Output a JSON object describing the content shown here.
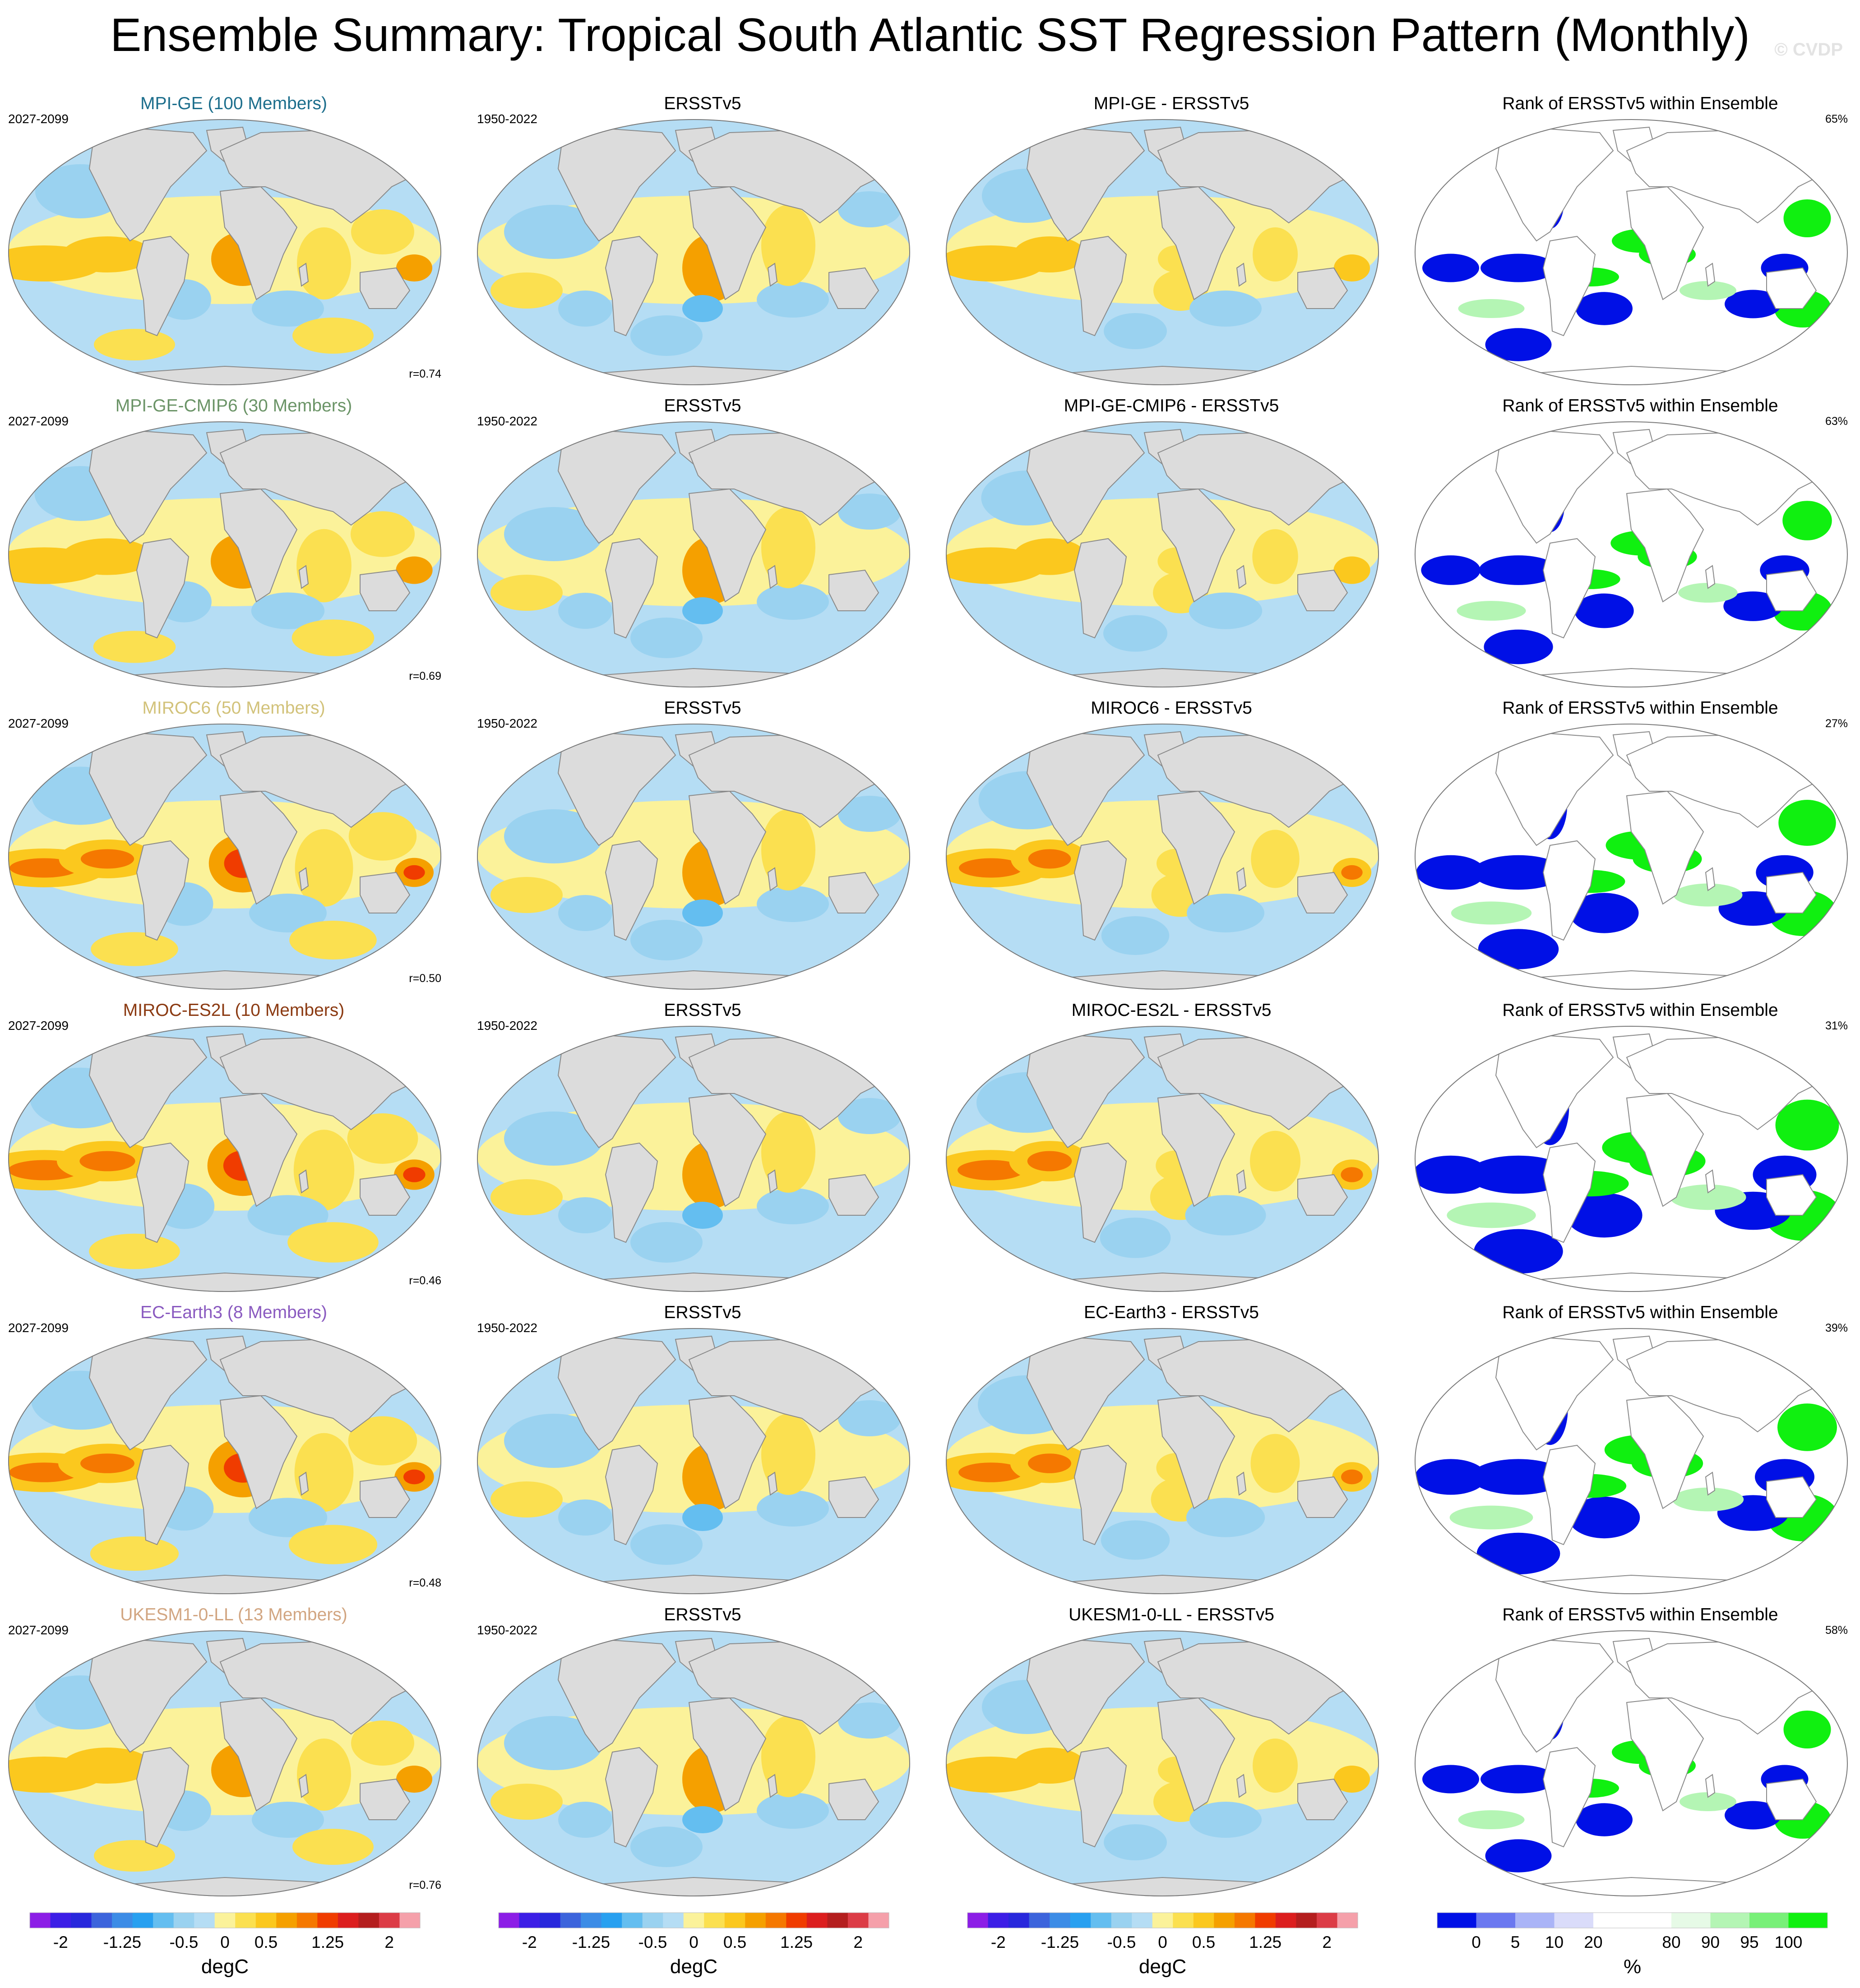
{
  "title": "Ensemble Summary: Tropical South Atlantic SST Regression Pattern (Monthly)",
  "watermark": "© CVDP",
  "colors": {
    "ocean_neg": "#b5ddf4",
    "ocean_pos": "#fbf29a",
    "land": "#dcdcdc",
    "rank_low": "#0010e6",
    "rank_high": "#10f010"
  },
  "rows": [
    {
      "model": {
        "title": "MPI-GE (100 Members)",
        "period": "2027-2099",
        "corr": "r=0.74",
        "color": "#1c6e8c"
      },
      "obs": {
        "title": "ERSSTv5",
        "period": "1950-2022"
      },
      "diff": {
        "title": "MPI-GE - ERSSTv5"
      },
      "rank": {
        "title": "Rank of ERSSTv5 within Ensemble",
        "pct": "65%"
      },
      "intensity": 1.0
    },
    {
      "model": {
        "title": "MPI-GE-CMIP6 (30 Members)",
        "period": "2027-2099",
        "corr": "r=0.69",
        "color": "#6b9467"
      },
      "obs": {
        "title": "ERSSTv5",
        "period": "1950-2022"
      },
      "diff": {
        "title": "MPI-GE-CMIP6 - ERSSTv5"
      },
      "rank": {
        "title": "Rank of ERSSTv5 within Ensemble",
        "pct": "63%"
      },
      "intensity": 1.1
    },
    {
      "model": {
        "title": "MIROC6 (50 Members)",
        "period": "2027-2099",
        "corr": "r=0.50",
        "color": "#d2c27a"
      },
      "obs": {
        "title": "ERSSTv5",
        "period": "1950-2022"
      },
      "diff": {
        "title": "MIROC6 - ERSSTv5"
      },
      "rank": {
        "title": "Rank of ERSSTv5 within Ensemble",
        "pct": "27%"
      },
      "intensity": 1.5
    },
    {
      "model": {
        "title": "MIROC-ES2L (10 Members)",
        "period": "2027-2099",
        "corr": "r=0.46",
        "color": "#8b3a12"
      },
      "obs": {
        "title": "ERSSTv5",
        "period": "1950-2022"
      },
      "diff": {
        "title": "MIROC-ES2L - ERSSTv5"
      },
      "rank": {
        "title": "Rank of ERSSTv5 within Ensemble",
        "pct": "31%"
      },
      "intensity": 1.8
    },
    {
      "model": {
        "title": "EC-Earth3 (8 Members)",
        "period": "2027-2099",
        "corr": "r=0.48",
        "color": "#8a5ac0"
      },
      "obs": {
        "title": "ERSSTv5",
        "period": "1950-2022"
      },
      "diff": {
        "title": "EC-Earth3 - ERSSTv5"
      },
      "rank": {
        "title": "Rank of ERSSTv5 within Ensemble",
        "pct": "39%"
      },
      "intensity": 1.6
    },
    {
      "model": {
        "title": "UKESM1-0-LL (13 Members)",
        "period": "2027-2099",
        "corr": "r=0.76",
        "color": "#d2a682"
      },
      "obs": {
        "title": "ERSSTv5",
        "period": "1950-2022"
      },
      "diff": {
        "title": "UKESM1-0-LL - ERSSTv5"
      },
      "rank": {
        "title": "Rank of ERSSTv5 within Ensemble",
        "pct": "58%"
      },
      "intensity": 1.0
    }
  ],
  "sst_colorbar": {
    "colors": [
      "#8c1ee6",
      "#3c1ee6",
      "#2828dc",
      "#3c64dc",
      "#3c8ce6",
      "#28a0f0",
      "#64bef0",
      "#9ad2f0",
      "#b5ddf4",
      "#fbf29a",
      "#fbe050",
      "#fbc81e",
      "#f5a000",
      "#f57800",
      "#f03c00",
      "#dc1e1e",
      "#b41e1e",
      "#dc3c46",
      "#f5a0aa"
    ],
    "ticks": [
      "-2",
      "-1.25",
      "-0.5",
      "0",
      "0.5",
      "1.25",
      "2"
    ],
    "unit": "degC"
  },
  "rank_colorbar": {
    "colors": [
      "#0010e6",
      "#6b78f0",
      "#aab4f7",
      "#dadcfa",
      "#ffffff",
      "#ffffff",
      "#e6fae6",
      "#b4f5b4",
      "#78f078",
      "#10f010"
    ],
    "ticks": [
      "0",
      "5",
      "10",
      "20",
      "80",
      "90",
      "95",
      "100"
    ],
    "unit": "%"
  }
}
